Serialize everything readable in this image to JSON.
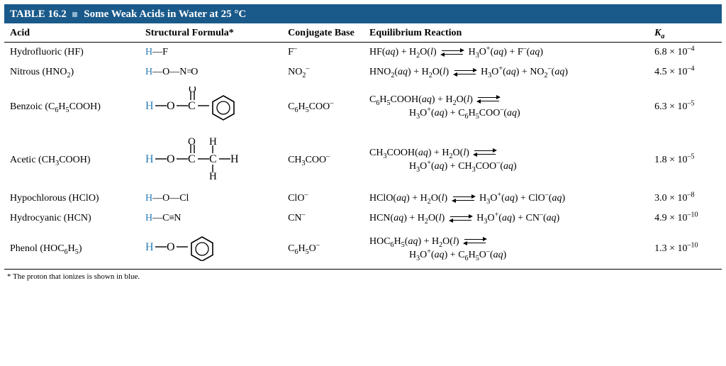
{
  "title_prefix": "TABLE 16.2",
  "title_rest": "Some Weak Acids in Water at 25 °C",
  "colors": {
    "header_bg": "#1a5a8a",
    "header_text": "#ffffff",
    "h_atom": "#2a7db5",
    "rule": "#000000"
  },
  "columns": {
    "acid": "Acid",
    "structural": "Structural Formula*",
    "conjugate": "Conjugate Base",
    "equilibrium": "Equilibrium Reaction",
    "ka": "Kₐ"
  },
  "rows": [
    {
      "acid": "Hydrofluoric (HF)",
      "structural_html": "<span class='h'>H</span>—F",
      "conjugate_html": "F<sup>–</sup>",
      "equilibrium_html": "HF(<span class='it'>aq</span>) + H<sub>2</sub>O(<span class='it'>l</span>) <EQ> H<sub>3</sub>O<sup>+</sup>(<span class='it'>aq</span>) + F<sup>–</sup>(<span class='it'>aq</span>)",
      "ka_html": "6.8 × 10<sup>–4</sup>"
    },
    {
      "acid": "Nitrous (HNO₂)",
      "structural_html": "<span class='h'>H</span>—O—N<span style='letter-spacing:-2px'>=</span>O",
      "conjugate_html": "NO<sub>2</sub><sup>–</sup>",
      "equilibrium_html": "HNO<sub>2</sub>(<span class='it'>aq</span>) + H<sub>2</sub>O(<span class='it'>l</span>) <EQ> H<sub>3</sub>O<sup>+</sup>(<span class='it'>aq</span>) + NO<sub>2</sub><sup>–</sup>(<span class='it'>aq</span>)",
      "ka_html": "4.5 × 10<sup>–4</sup>"
    },
    {
      "acid": "Benzoic (C₆H₅COOH)",
      "structural_svg": "benzoic",
      "conjugate_html": "C<sub>6</sub>H<sub>5</sub>COO<sup>–</sup>",
      "equilibrium_html": "C<sub>6</sub>H<sub>5</sub>COOH(<span class='it'>aq</span>) + H<sub>2</sub>O(<span class='it'>l</span>) <EQ><br>&nbsp;&nbsp;&nbsp;&nbsp;&nbsp;&nbsp;&nbsp;&nbsp;&nbsp;&nbsp;&nbsp;&nbsp;&nbsp;&nbsp;&nbsp;&nbsp;H<sub>3</sub>O<sup>+</sup>(<span class='it'>aq</span>) + C<sub>6</sub>H<sub>5</sub>COO<sup>–</sup>(<span class='it'>aq</span>)",
      "ka_html": "6.3 × 10<sup>–5</sup>"
    },
    {
      "acid": "Acetic (CH₃COOH)",
      "structural_svg": "acetic",
      "conjugate_html": "CH<sub>3</sub>COO<sup>–</sup>",
      "equilibrium_html": "CH<sub>3</sub>COOH(<span class='it'>aq</span>) + H<sub>2</sub>O(<span class='it'>l</span>) <EQ><br>&nbsp;&nbsp;&nbsp;&nbsp;&nbsp;&nbsp;&nbsp;&nbsp;&nbsp;&nbsp;&nbsp;&nbsp;&nbsp;&nbsp;&nbsp;&nbsp;H<sub>3</sub>O<sup>+</sup>(<span class='it'>aq</span>) + CH<sub>3</sub>COO<sup>–</sup>(<span class='it'>aq</span>)",
      "ka_html": "1.8 × 10<sup>–5</sup>"
    },
    {
      "acid": "Hypochlorous (HClO)",
      "structural_html": "<span class='h'>H</span>—O—Cl",
      "conjugate_html": "ClO<sup>–</sup>",
      "equilibrium_html": "HClO(<span class='it'>aq</span>) + H<sub>2</sub>O(<span class='it'>l</span>) <EQ> H<sub>3</sub>O<sup>+</sup>(<span class='it'>aq</span>) + ClO<sup>–</sup>(<span class='it'>aq</span>)",
      "ka_html": "3.0 × 10<sup>–8</sup>"
    },
    {
      "acid": "Hydrocyanic (HCN)",
      "structural_html": "<span class='h'>H</span>—C<span style='letter-spacing:-1px'>≡</span>N",
      "conjugate_html": "CN<sup>–</sup>",
      "equilibrium_html": "HCN(<span class='it'>aq</span>) + H<sub>2</sub>O(<span class='it'>l</span>) <EQ> H<sub>3</sub>O<sup>+</sup>(<span class='it'>aq</span>) + CN<sup>–</sup>(<span class='it'>aq</span>)",
      "ka_html": "4.9 × 10<sup>–10</sup>"
    },
    {
      "acid": "Phenol (HOC₆H₅)",
      "structural_svg": "phenol",
      "conjugate_html": "C<sub>6</sub>H<sub>5</sub>O<sup>–</sup>",
      "equilibrium_html": "HOC<sub>6</sub>H<sub>5</sub>(<span class='it'>aq</span>) + H<sub>2</sub>O(<span class='it'>l</span>) <EQ><br>&nbsp;&nbsp;&nbsp;&nbsp;&nbsp;&nbsp;&nbsp;&nbsp;&nbsp;&nbsp;&nbsp;&nbsp;&nbsp;&nbsp;&nbsp;&nbsp;H<sub>3</sub>O<sup>+</sup>(<span class='it'>aq</span>) + C<sub>6</sub>H<sub>5</sub>O<sup>–</sup>(<span class='it'>aq</span>)",
      "ka_html": "1.3 × 10<sup>–10</sup>"
    }
  ],
  "footnote": "* The proton that ionizes is shown in blue."
}
